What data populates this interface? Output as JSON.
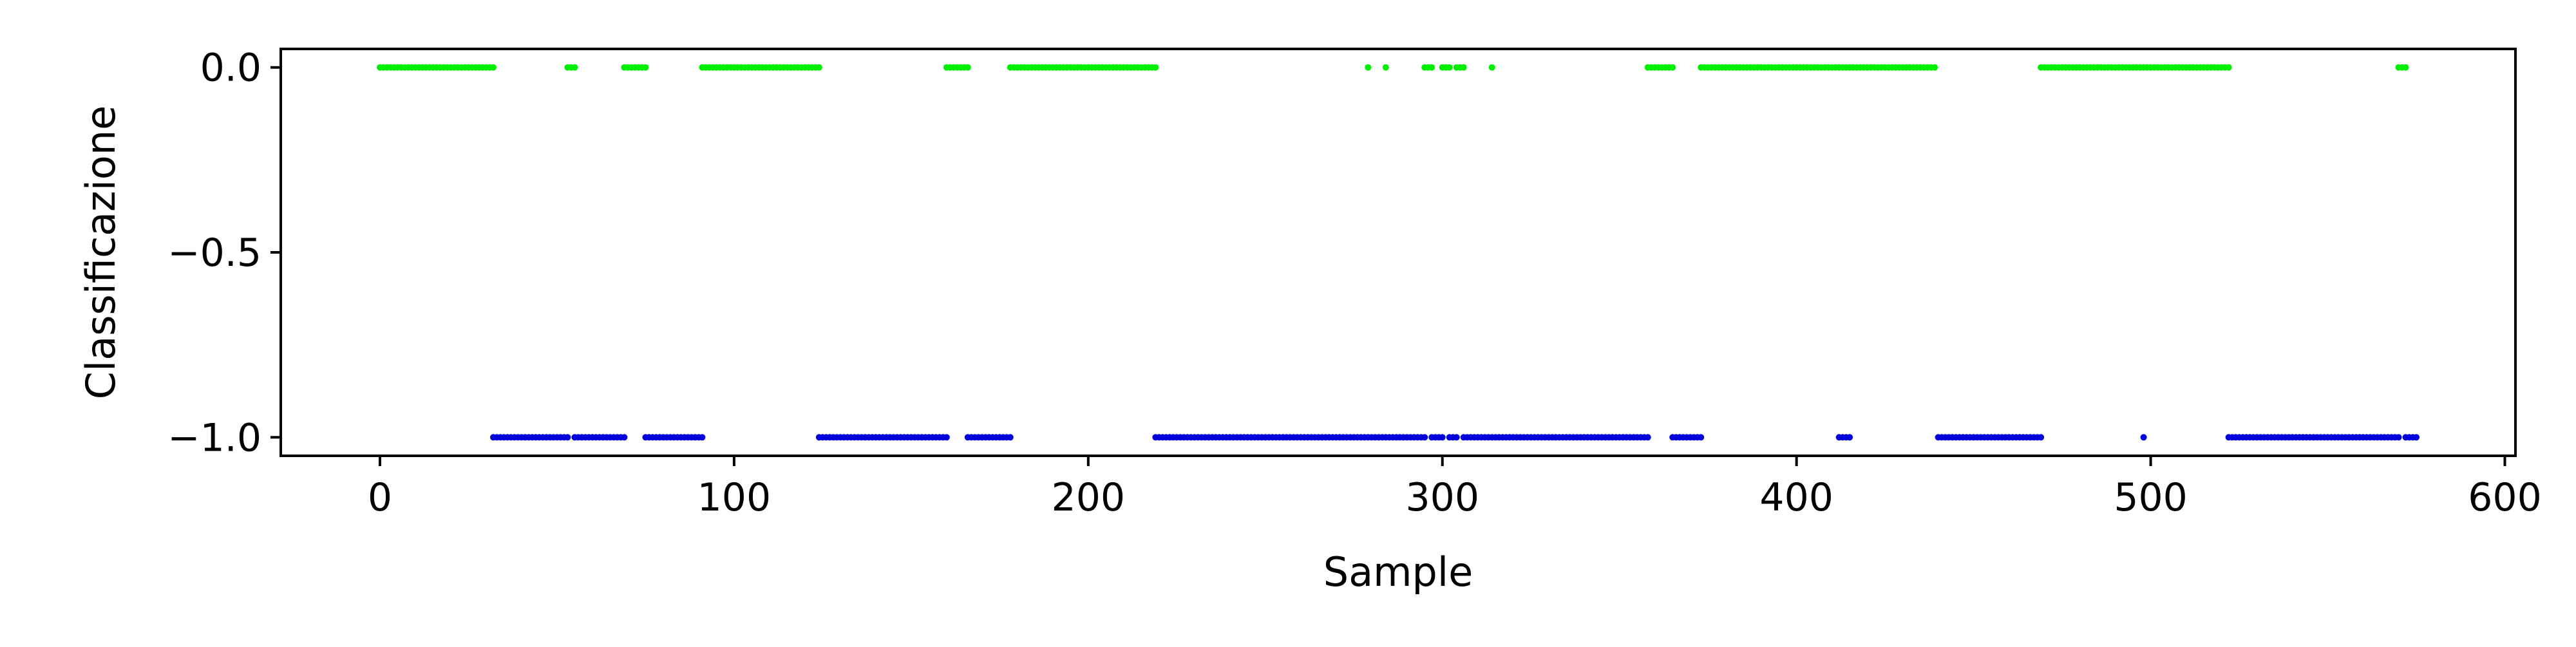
{
  "chart_data": {
    "type": "scatter",
    "title": "",
    "xlabel": "Sample",
    "ylabel": "Classificazione",
    "xlim": [
      -28,
      603
    ],
    "ylim": [
      -1.05,
      0.05
    ],
    "x_ticks": [
      0,
      100,
      200,
      300,
      400,
      500,
      600
    ],
    "x_tick_labels": [
      "0",
      "100",
      "200",
      "300",
      "400",
      "500",
      "600"
    ],
    "y_ticks": [
      0.0,
      -0.5,
      -1.0
    ],
    "y_tick_labels": [
      "0.0",
      "−0.5",
      "−1.0"
    ],
    "grid": false,
    "legend": "none",
    "series": [
      {
        "y": 0.0,
        "color": "#00ee00",
        "x_ranges": [
          [
            0,
            32
          ],
          [
            53,
            55
          ],
          [
            69,
            75
          ],
          [
            91,
            124
          ],
          [
            160,
            166
          ],
          [
            178,
            219
          ],
          [
            279,
            279
          ],
          [
            284,
            284
          ],
          [
            295,
            297
          ],
          [
            300,
            302
          ],
          [
            304,
            306
          ],
          [
            314,
            314
          ],
          [
            358,
            365
          ],
          [
            373,
            439
          ],
          [
            469,
            522
          ],
          [
            570,
            572
          ]
        ]
      },
      {
        "y": -1.0,
        "color": "#0000dd",
        "x_ranges": [
          [
            32,
            53
          ],
          [
            55,
            69
          ],
          [
            75,
            91
          ],
          [
            124,
            160
          ],
          [
            166,
            178
          ],
          [
            219,
            279
          ],
          [
            280,
            284
          ],
          [
            285,
            295
          ],
          [
            297,
            300
          ],
          [
            302,
            304
          ],
          [
            306,
            314
          ],
          [
            315,
            358
          ],
          [
            365,
            373
          ],
          [
            412,
            415
          ],
          [
            440,
            469
          ],
          [
            498,
            498
          ],
          [
            522,
            570
          ],
          [
            572,
            575
          ]
        ]
      }
    ]
  }
}
